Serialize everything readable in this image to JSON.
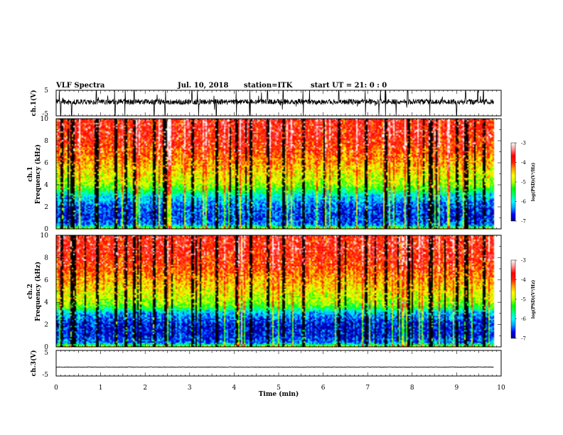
{
  "header": {
    "title": "VLF Spectra",
    "date": "Jul. 10, 2018",
    "station": "station=ITK",
    "start_ut": "start UT =  21: 0 : 0"
  },
  "chart_data": [
    {
      "type": "line",
      "panel": "ch1-waveform",
      "ylabel": "ch.1(V)",
      "xlim": [
        0,
        10
      ],
      "ylim": [
        -5,
        5
      ],
      "y_ticks": [
        "5",
        "-5"
      ],
      "baseline_v": 0.5,
      "noise_amplitude_v": 1.5,
      "spike_bursts": "frequent, many reaching ±5 V",
      "data_end_min": 9.83
    },
    {
      "type": "heatmap",
      "panel": "ch1-spectrogram",
      "ylabel": "ch.1",
      "ylabel2": "Frequency (kHz)",
      "xlim": [
        0,
        10
      ],
      "ylim": [
        0,
        10
      ],
      "y_ticks": [
        "0",
        "2",
        "4",
        "6",
        "8",
        "10"
      ],
      "colorbar": {
        "label": "log(PSD)(V²/Hz)",
        "range": [
          -7,
          -3
        ],
        "ticks": [
          "-3",
          "-4",
          "-5",
          "-6",
          "-7"
        ]
      },
      "profile_freq_khz": [
        0,
        0.3,
        1,
        2,
        3,
        3.5,
        4,
        5,
        6,
        7,
        8,
        9,
        10
      ],
      "profile_log_psd": [
        -5.0,
        -6.4,
        -6.6,
        -6.5,
        -6.0,
        -5.4,
        -5.0,
        -4.7,
        -4.4,
        -4.1,
        -3.9,
        -3.8,
        -3.8
      ]
    },
    {
      "type": "heatmap",
      "panel": "ch2-spectrogram",
      "ylabel": "ch.2",
      "ylabel2": "Frequency (kHz)",
      "xlim": [
        0,
        10
      ],
      "ylim": [
        0,
        10
      ],
      "y_ticks": [
        "0",
        "2",
        "4",
        "6",
        "8",
        "10"
      ],
      "colorbar": {
        "label": "log(PSD)(V²/Hz)",
        "range": [
          -7,
          -3
        ],
        "ticks": [
          "-3",
          "-4",
          "-5",
          "-6",
          "-7"
        ]
      },
      "profile_freq_khz": [
        0,
        0.3,
        1,
        2,
        3,
        3.5,
        4,
        5,
        6,
        7,
        8,
        9,
        10
      ],
      "profile_log_psd": [
        -5.0,
        -6.4,
        -6.7,
        -6.7,
        -6.2,
        -5.4,
        -5.0,
        -4.7,
        -4.4,
        -4.1,
        -3.9,
        -3.8,
        -3.8
      ]
    },
    {
      "type": "line",
      "panel": "ch3-waveform",
      "ylabel": "ch.3(V)",
      "xlim": [
        0,
        10
      ],
      "ylim": [
        -5,
        5
      ],
      "y_ticks": [
        "5",
        "-5"
      ],
      "baseline_v": -1.5,
      "noise_amplitude_v": 0.1,
      "data_end_min": 9.83
    }
  ],
  "x_axis": {
    "label": "Time (min)",
    "ticks": [
      "0",
      "1",
      "2",
      "3",
      "4",
      "5",
      "6",
      "7",
      "8",
      "9",
      "10"
    ]
  },
  "colors": {
    "colormap": [
      "#000080",
      "#0000ff",
      "#00a0ff",
      "#00ffff",
      "#00ff80",
      "#00ff00",
      "#c0ff00",
      "#ffff00",
      "#ffa000",
      "#ff2000",
      "#ff0000",
      "#ff9090",
      "#ffffff"
    ]
  }
}
